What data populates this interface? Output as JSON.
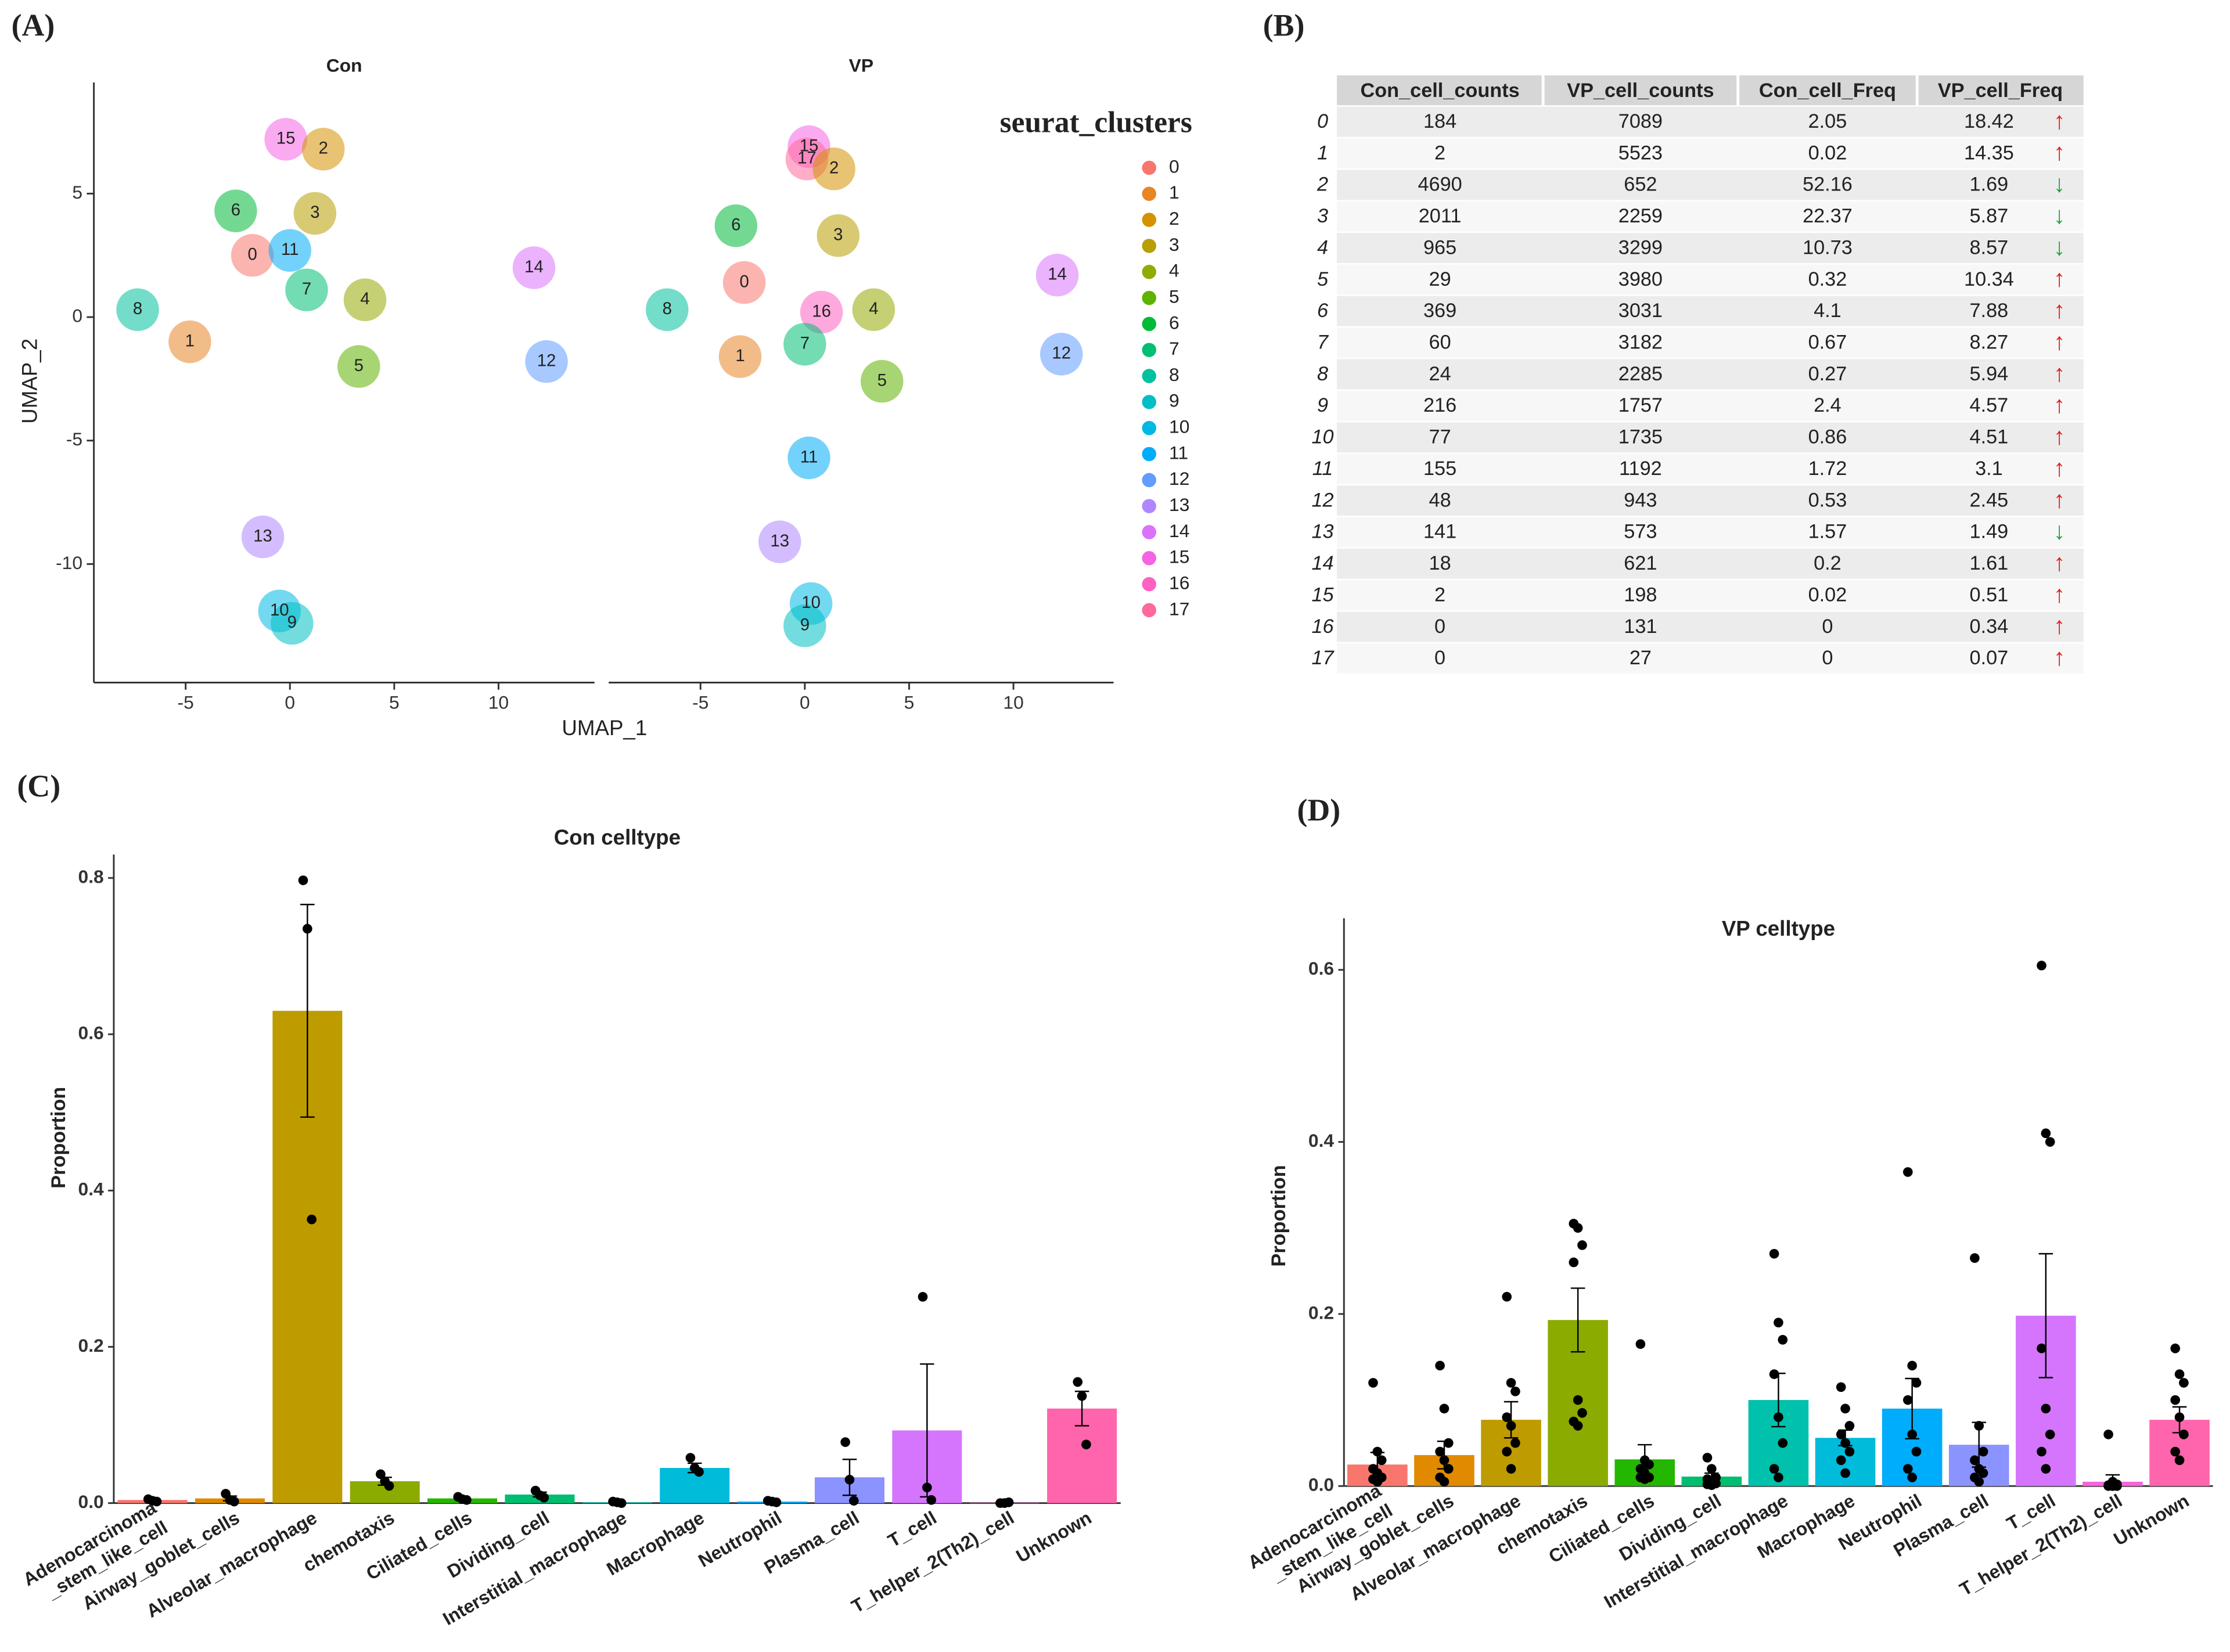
{
  "panels": [
    "(A)",
    "(B)",
    "(C)",
    "(D)"
  ],
  "umap": {
    "xlabel": "UMAP_1",
    "ylabel": "UMAP_2",
    "legend_title": "seurat_clusters",
    "labels": [
      "0",
      "1",
      "2",
      "3",
      "4",
      "5",
      "6",
      "7",
      "8",
      "9",
      "10",
      "11",
      "12",
      "13",
      "14",
      "15",
      "16",
      "17"
    ],
    "colors": [
      "#F8766D",
      "#E88526",
      "#D39200",
      "#B79F00",
      "#93AA00",
      "#5EB300",
      "#00BA38",
      "#00BF74",
      "#00C19F",
      "#00BFC4",
      "#00B9E3",
      "#00ADFA",
      "#619CFF",
      "#AE87FF",
      "#DB72FB",
      "#F564E3",
      "#FF61C3",
      "#FF699C"
    ]
  },
  "chart_data": [
    {
      "type": "scatter",
      "title": "Con",
      "labels": [
        "15",
        "2",
        "6",
        "3",
        "0",
        "11",
        "7",
        "4",
        "8",
        "1",
        "5",
        "14",
        "12",
        "13",
        "10",
        "9"
      ],
      "x": [
        -0.2,
        1.6,
        -2.6,
        1.2,
        -1.8,
        0,
        0.8,
        3.6,
        -7.3,
        -4.8,
        3.3,
        11.7,
        12.3,
        -1.3,
        -0.5,
        0.1
      ],
      "y": [
        7.2,
        6.8,
        4.3,
        4.2,
        2.5,
        2.7,
        1.1,
        0.7,
        0.3,
        -1.0,
        -2.0,
        2.0,
        -1.8,
        -8.9,
        -11.9,
        -12.4
      ],
      "xlim": [
        -9.4,
        14.6
      ],
      "ylim": [
        -14.8,
        9.5
      ],
      "xticks": [
        -5,
        0,
        5,
        10
      ],
      "yticks": [
        -10,
        -5,
        0,
        5
      ]
    },
    {
      "type": "scatter",
      "title": "VP",
      "labels": [
        "15",
        "17",
        "2",
        "6",
        "3",
        "0",
        "8",
        "16",
        "4",
        "7",
        "1",
        "5",
        "14",
        "12",
        "11",
        "13",
        "10",
        "9"
      ],
      "x": [
        0.2,
        0.1,
        1.4,
        -3.3,
        1.6,
        -2.9,
        -6.6,
        0.8,
        3.3,
        0,
        -3.1,
        3.7,
        12.1,
        12.3,
        0.2,
        -1.2,
        0.3,
        0
      ],
      "y": [
        6.9,
        6.4,
        6.0,
        3.7,
        3.3,
        1.4,
        0.3,
        0.2,
        0.3,
        -1.1,
        -1.6,
        -2.6,
        1.7,
        -1.5,
        -5.7,
        -9.1,
        -11.6,
        -12.5
      ],
      "xlim": [
        -9.4,
        14.8
      ],
      "ylim": [
        -14.8,
        9.5
      ],
      "xticks": [
        -5,
        0,
        5,
        10
      ]
    },
    {
      "type": "bar",
      "title": "Con  celltype",
      "ylabel": "Proportion",
      "categories": [
        "Adenocarcinoma\n_stem_like_cell",
        "Airway_goblet_cells",
        "Alveolar_macrophage",
        "chemotaxis",
        "Ciliated_cells",
        "Dividing_cell",
        "Interstitial_macrophage",
        "Macrophage",
        "Neutrophil",
        "Plasma_cell",
        "T_cell",
        "T_helper_2(Th2)_cell",
        "Unknown"
      ],
      "colors": [
        "#F8766D",
        "#E18A00",
        "#BE9C00",
        "#8CAB00",
        "#24B700",
        "#00BE70",
        "#00C1AB",
        "#00BBDA",
        "#00ACFC",
        "#8B93FF",
        "#D575FE",
        "#F962DD",
        "#FF65AC"
      ],
      "values": [
        0.004,
        0.006,
        0.63,
        0.028,
        0.006,
        0.011,
        0.001,
        0.045,
        0.002,
        0.033,
        0.093,
        0.0005,
        0.121
      ],
      "errors": [
        0.001,
        0.003,
        0.136,
        0.005,
        0.001,
        0.003,
        0.001,
        0.006,
        0.001,
        0.023,
        0.085,
        0.0005,
        0.022
      ],
      "points": [
        [
          0.005,
          0.003,
          0.002
        ],
        [
          0.012,
          0.004,
          0.002
        ],
        [
          0.797,
          0.735,
          0.363
        ],
        [
          0.037,
          0.028,
          0.022
        ],
        [
          0.008,
          0.005,
          0.004
        ],
        [
          0.016,
          0.01,
          0.007
        ],
        [
          0.002,
          0.001,
          0
        ],
        [
          0.058,
          0.045,
          0.04
        ],
        [
          0.003,
          0.002,
          0.001
        ],
        [
          0.078,
          0.03,
          0.003
        ],
        [
          0.264,
          0.02,
          0.004
        ],
        [
          0,
          0,
          0.001
        ],
        [
          0.155,
          0.137,
          0.075
        ]
      ],
      "ylim": [
        0,
        0.83
      ],
      "yticks": [
        {
          "value": 0,
          "label": "0.0"
        },
        0.2,
        0.4,
        0.6,
        0.8
      ]
    },
    {
      "type": "bar",
      "title": "VP celltype",
      "ylabel": "Proportion",
      "categories": [
        "Adenocarcinoma\n_stem_like_cell",
        "Airway_goblet_cells",
        "Alveolar_macrophage",
        "chemotaxis",
        "Ciliated_cells",
        "Dividing_cell",
        "Interstitial_macrophage",
        "Macrophage",
        "Neutrophil",
        "Plasma_cell",
        "T_cell",
        "T_helper_2(Th2)_cell",
        "Unknown"
      ],
      "colors": [
        "#F8766D",
        "#E18A00",
        "#BE9C00",
        "#8CAB00",
        "#24B700",
        "#00BE70",
        "#00C1AB",
        "#00BBDA",
        "#00ACFC",
        "#8B93FF",
        "#D575FE",
        "#F962DD",
        "#FF65AC"
      ],
      "values": [
        0.025,
        0.036,
        0.077,
        0.193,
        0.031,
        0.011,
        0.1,
        0.056,
        0.09,
        0.048,
        0.198,
        0.005,
        0.077
      ],
      "errors": [
        0.014,
        0.016,
        0.021,
        0.037,
        0.017,
        0.004,
        0.031,
        0.009,
        0.035,
        0.026,
        0.072,
        0.008,
        0.015
      ],
      "points": [
        [
          0.12,
          0.04,
          0.03,
          0.02,
          0.015,
          0.01,
          0.008,
          0.005
        ],
        [
          0.14,
          0.09,
          0.05,
          0.04,
          0.03,
          0.02,
          0.01,
          0.005
        ],
        [
          0.22,
          0.12,
          0.11,
          0.08,
          0.07,
          0.05,
          0.04,
          0.02
        ],
        [
          0.305,
          0.3,
          0.28,
          0.26,
          0.1,
          0.085,
          0.075,
          0.07
        ],
        [
          0.165,
          0.03,
          0.025,
          0.02,
          0.015,
          0.01,
          0.01,
          0.008
        ],
        [
          0.033,
          0.02,
          0.01,
          0.008,
          0.005,
          0.003,
          0.002,
          0.001
        ],
        [
          0.27,
          0.19,
          0.17,
          0.13,
          0.08,
          0.05,
          0.02,
          0.01
        ],
        [
          0.115,
          0.09,
          0.07,
          0.06,
          0.05,
          0.04,
          0.03,
          0.015
        ],
        [
          0.365,
          0.14,
          0.12,
          0.1,
          0.06,
          0.04,
          0.02,
          0.01
        ],
        [
          0.265,
          0.07,
          0.04,
          0.03,
          0.02,
          0.015,
          0.01,
          0.005
        ],
        [
          0.605,
          0.41,
          0.4,
          0.16,
          0.09,
          0.06,
          0.04,
          0.02
        ],
        [
          0.06,
          0.005,
          0.002,
          0.001,
          0,
          0,
          0,
          0
        ],
        [
          0.16,
          0.13,
          0.12,
          0.1,
          0.08,
          0.06,
          0.04,
          0.03
        ]
      ],
      "ylim": [
        0,
        0.66
      ],
      "yticks": [
        {
          "value": 0,
          "label": "0.0"
        },
        0.2,
        0.4,
        0.6
      ]
    }
  ],
  "table": {
    "columns": [
      "Con_cell_counts",
      "VP_cell_counts",
      "Con_cell_Freq",
      "VP_cell_Freq"
    ],
    "rows": [
      {
        "cluster": "0",
        "cells": [
          "184",
          "7089",
          "2.05",
          "18.42"
        ],
        "trend": "↑"
      },
      {
        "cluster": "1",
        "cells": [
          "2",
          "5523",
          "0.02",
          "14.35"
        ],
        "trend": "↑"
      },
      {
        "cluster": "2",
        "cells": [
          "4690",
          "652",
          "52.16",
          "1.69"
        ],
        "trend": "↓"
      },
      {
        "cluster": "3",
        "cells": [
          "2011",
          "2259",
          "22.37",
          "5.87"
        ],
        "trend": "↓"
      },
      {
        "cluster": "4",
        "cells": [
          "965",
          "3299",
          "10.73",
          "8.57"
        ],
        "trend": "↓"
      },
      {
        "cluster": "5",
        "cells": [
          "29",
          "3980",
          "0.32",
          "10.34"
        ],
        "trend": "↑"
      },
      {
        "cluster": "6",
        "cells": [
          "369",
          "3031",
          "4.1",
          "7.88"
        ],
        "trend": "↑"
      },
      {
        "cluster": "7",
        "cells": [
          "60",
          "3182",
          "0.67",
          "8.27"
        ],
        "trend": "↑"
      },
      {
        "cluster": "8",
        "cells": [
          "24",
          "2285",
          "0.27",
          "5.94"
        ],
        "trend": "↑"
      },
      {
        "cluster": "9",
        "cells": [
          "216",
          "1757",
          "2.4",
          "4.57"
        ],
        "trend": "↑"
      },
      {
        "cluster": "10",
        "cells": [
          "77",
          "1735",
          "0.86",
          "4.51"
        ],
        "trend": "↑"
      },
      {
        "cluster": "11",
        "cells": [
          "155",
          "1192",
          "1.72",
          "3.1"
        ],
        "trend": "↑"
      },
      {
        "cluster": "12",
        "cells": [
          "48",
          "943",
          "0.53",
          "2.45"
        ],
        "trend": "↑"
      },
      {
        "cluster": "13",
        "cells": [
          "141",
          "573",
          "1.57",
          "1.49"
        ],
        "trend": "↓"
      },
      {
        "cluster": "14",
        "cells": [
          "18",
          "621",
          "0.2",
          "1.61"
        ],
        "trend": "↑"
      },
      {
        "cluster": "15",
        "cells": [
          "2",
          "198",
          "0.02",
          "0.51"
        ],
        "trend": "↑"
      },
      {
        "cluster": "16",
        "cells": [
          "0",
          "131",
          "0",
          "0.34"
        ],
        "trend": "↑"
      },
      {
        "cluster": "17",
        "cells": [
          "0",
          "27",
          "0",
          "0.07"
        ],
        "trend": "↑"
      }
    ]
  }
}
